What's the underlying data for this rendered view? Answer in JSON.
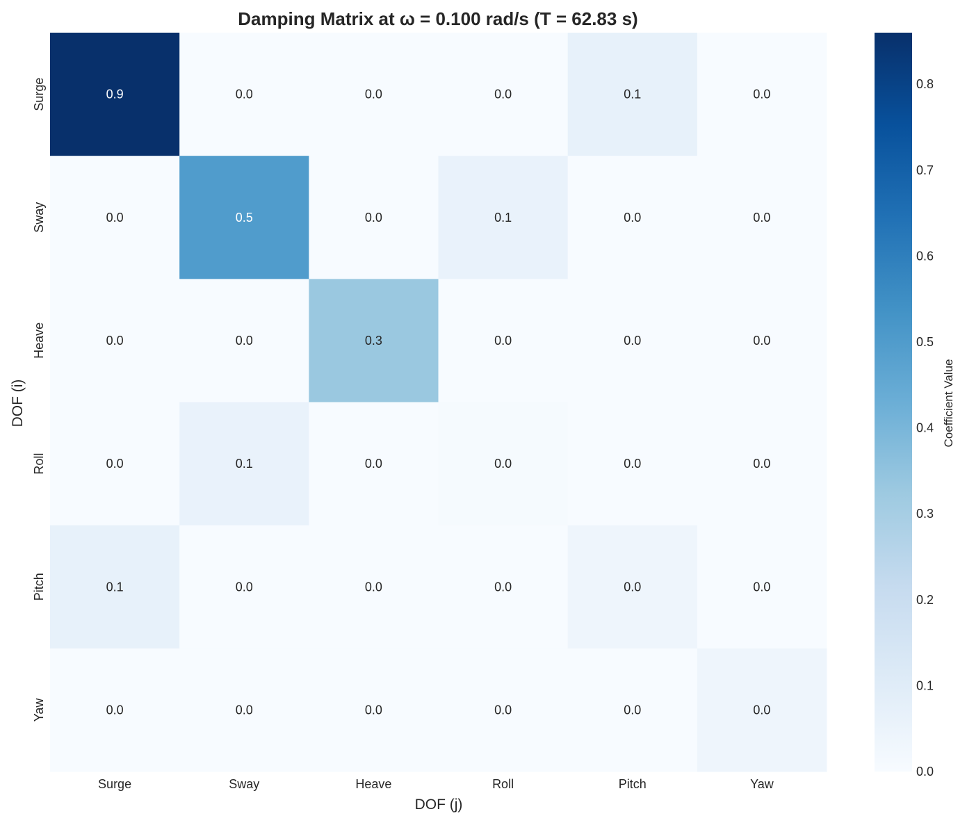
{
  "chart_data": {
    "type": "heatmap",
    "title": "Damping Matrix at ω = 0.100 rad/s (T = 62.83 s)",
    "xlabel": "DOF (j)",
    "ylabel": "DOF (i)",
    "x_categories": [
      "Surge",
      "Sway",
      "Heave",
      "Roll",
      "Pitch",
      "Yaw"
    ],
    "y_categories": [
      "Surge",
      "Sway",
      "Heave",
      "Roll",
      "Pitch",
      "Yaw"
    ],
    "values": [
      [
        0.86,
        0.0,
        0.0,
        0.0,
        0.07,
        0.0
      ],
      [
        0.0,
        0.5,
        0.0,
        0.06,
        0.0,
        0.0
      ],
      [
        0.0,
        0.0,
        0.33,
        0.0,
        0.0,
        0.0
      ],
      [
        0.0,
        0.06,
        0.0,
        0.01,
        0.0,
        0.0
      ],
      [
        0.07,
        0.0,
        0.0,
        0.0,
        0.04,
        0.0
      ],
      [
        0.0,
        0.0,
        0.0,
        0.0,
        0.0,
        0.04
      ]
    ],
    "annotations": [
      [
        "0.9",
        "0.0",
        "0.0",
        "0.0",
        "0.1",
        "0.0"
      ],
      [
        "0.0",
        "0.5",
        "0.0",
        "0.1",
        "0.0",
        "0.0"
      ],
      [
        "0.0",
        "0.0",
        "0.3",
        "0.0",
        "0.0",
        "0.0"
      ],
      [
        "0.0",
        "0.1",
        "0.0",
        "0.0",
        "0.0",
        "0.0"
      ],
      [
        "0.1",
        "0.0",
        "0.0",
        "0.0",
        "0.0",
        "0.0"
      ],
      [
        "0.0",
        "0.0",
        "0.0",
        "0.0",
        "0.0",
        "0.0"
      ]
    ],
    "colorbar": {
      "label": "Coefficient Value",
      "min": 0.0,
      "max": 0.86,
      "ticks": [
        "0.0",
        "0.1",
        "0.2",
        "0.3",
        "0.4",
        "0.5",
        "0.6",
        "0.7",
        "0.8"
      ],
      "colormap": "Blues"
    }
  }
}
